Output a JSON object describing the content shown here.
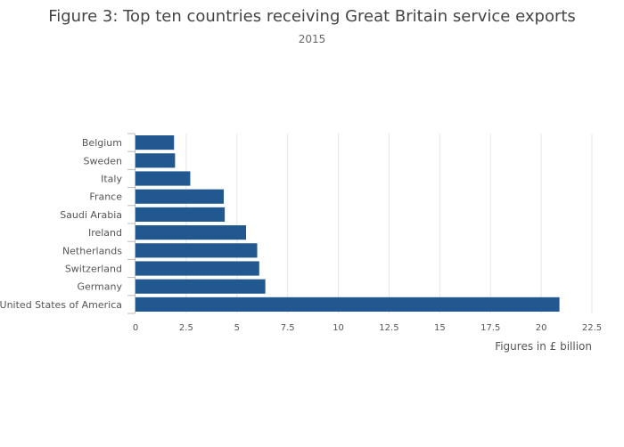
{
  "chart_data": {
    "type": "bar",
    "orientation": "horizontal",
    "title": "Figure 3: Top ten countries receiving Great Britain service exports",
    "subtitle": "2015",
    "xlabel": "Figures in £ billion",
    "ylabel": "",
    "categories": [
      "Belgium",
      "Sweden",
      "Italy",
      "France",
      "Saudi Arabia",
      "Ireland",
      "Netherlands",
      "Switzerland",
      "Germany",
      "United States of America"
    ],
    "values": [
      1.9,
      1.95,
      2.7,
      4.35,
      4.4,
      5.45,
      6.0,
      6.1,
      6.4,
      20.9
    ],
    "xlim": [
      0,
      22.5
    ],
    "xticks": [
      0,
      2.5,
      5,
      7.5,
      10,
      12.5,
      15,
      17.5,
      20,
      22.5
    ],
    "xtick_labels": [
      "0",
      "2.5",
      "5",
      "7.5",
      "10",
      "12.5",
      "15",
      "17.5",
      "20",
      "22.5"
    ],
    "bar_color": "#21588f",
    "grid": true
  }
}
